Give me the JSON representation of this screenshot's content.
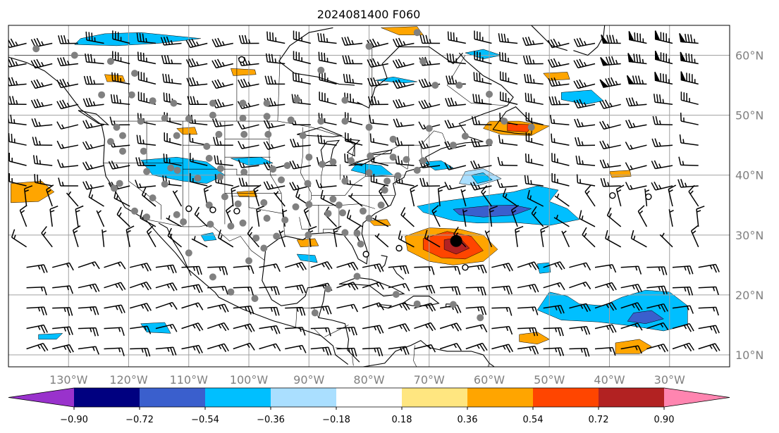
{
  "title": "2024081400 F060",
  "map": {
    "lat_labels": [
      "10°N",
      "20°N",
      "30°N",
      "40°N",
      "50°N",
      "60°N"
    ],
    "lat_values": [
      10,
      20,
      30,
      40,
      50,
      60
    ],
    "lon_labels": [
      "130°W",
      "120°W",
      "110°W",
      "100°W",
      "90°W",
      "80°W",
      "70°W",
      "60°W",
      "50°W",
      "40°W",
      "30°W"
    ],
    "lon_values": [
      -130,
      -120,
      -110,
      -100,
      -90,
      -80,
      -70,
      -60,
      -50,
      -40,
      -30
    ],
    "lon_range": [
      -140,
      -20
    ],
    "lat_range": [
      8,
      65
    ],
    "gridlines": true,
    "colors": {
      "grid": "#a0a0a0",
      "coast": "#000000",
      "station_gray": "#808080",
      "storm_center": "#000000"
    }
  },
  "colorbar": {
    "levels": [
      "−0.90",
      "−0.72",
      "−0.54",
      "−0.36",
      "−0.18",
      "0.18",
      "0.36",
      "0.54",
      "0.72",
      "0.90"
    ],
    "colors": [
      "#9932cc",
      "#000080",
      "#3a5fcd",
      "#00bfff",
      "#aadfff",
      "#ffffff",
      "#ffe680",
      "#ffa500",
      "#ff4500",
      "#b22222",
      "#ff85b0"
    ],
    "extend": "both"
  }
}
